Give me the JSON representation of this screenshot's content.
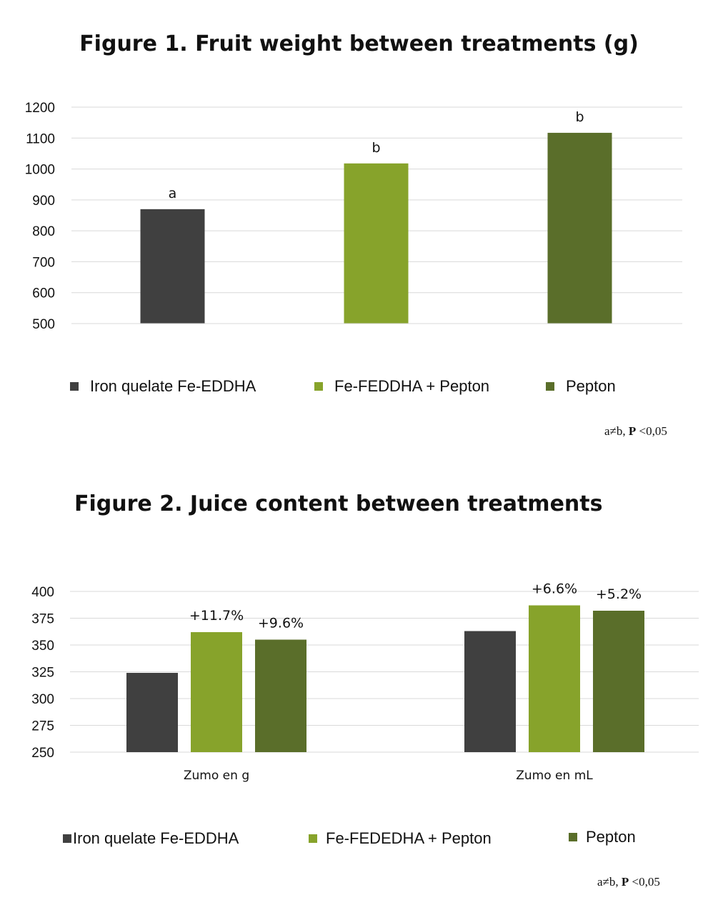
{
  "chart_data": [
    {
      "type": "bar",
      "title": "Figure 1. Fruit weight between treatments (g)",
      "categories": [
        "Iron quelate Fe-EDDHA",
        "Fe-FEDDHA + Pepton",
        "Pepton"
      ],
      "values": [
        870,
        1018,
        1117
      ],
      "bar_labels": [
        "a",
        "b",
        "b"
      ],
      "colors": [
        "#404040",
        "#87a32b",
        "#5a6e2a"
      ],
      "ylim": [
        500,
        1200
      ],
      "yticks": [
        "1200",
        "1100",
        "1000",
        "900",
        "800",
        "700",
        "600",
        "500"
      ],
      "grid": true,
      "legend": {
        "position": "bottom",
        "entries": [
          "Iron quelate Fe-EDDHA",
          "Fe-FEDDHA + Pepton",
          "Pepton"
        ]
      },
      "note": {
        "prefix": "a≠b, ",
        "bold": "P",
        "suffix": " <0,05"
      }
    },
    {
      "type": "bar",
      "title": "Figure 2. Juice content between treatments",
      "categories": [
        "Zumo en g",
        "Zumo en mL"
      ],
      "series": [
        {
          "name": "Iron quelate Fe-EDDHA",
          "color": "#404040",
          "values": [
            324,
            363
          ],
          "labels": [
            "",
            ""
          ]
        },
        {
          "name": "Fe-FEDEDHA + Pepton",
          "color": "#87a32b",
          "values": [
            362,
            387
          ],
          "labels": [
            "+11.7%",
            "+6.6%"
          ]
        },
        {
          "name": "Pepton",
          "color": "#5a6e2a",
          "values": [
            355,
            382
          ],
          "labels": [
            "+9.6%",
            "+5.2%"
          ]
        }
      ],
      "ylim": [
        250,
        400
      ],
      "yticks": [
        "400",
        "375",
        "350",
        "325",
        "300",
        "275",
        "250"
      ],
      "grid": true,
      "legend": {
        "position": "bottom",
        "entries": [
          "Iron quelate Fe-EDDHA",
          "Fe-FEDEDHA + Pepton",
          "Pepton"
        ]
      },
      "note": {
        "prefix": "a≠b, ",
        "bold": "P",
        "suffix": " <0,05"
      }
    }
  ]
}
